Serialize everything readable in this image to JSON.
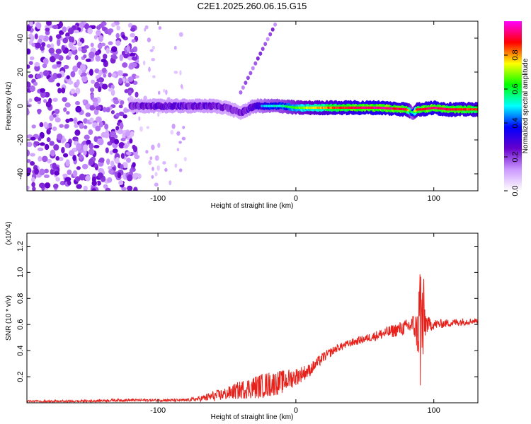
{
  "title": "C2E1.2025.260.06.15.G15",
  "chart_data": [
    {
      "type": "heatmap",
      "xlabel": "Height of straight line (km)",
      "ylabel": "Frequency (Hz)",
      "xlim": [
        -195,
        132
      ],
      "ylim": [
        -50,
        50
      ],
      "x_ticks": [
        -100,
        0,
        100
      ],
      "x_tick_labels": [
        "-100",
        "0",
        "100"
      ],
      "y_ticks": [
        -40,
        -20,
        0,
        20,
        40
      ],
      "y_tick_labels": [
        "-40",
        "-20",
        "0",
        "20",
        "40"
      ],
      "colorbar": {
        "label": "Normalized spectral amplitude",
        "range": [
          0,
          1
        ],
        "ticks": [
          0.0,
          0.2,
          0.4,
          0.6,
          0.8
        ],
        "tick_labels": [
          "0.0",
          "0.2",
          "0.4",
          "0.6",
          "0.8"
        ],
        "colors": [
          "#ffffff",
          "#cc99ff",
          "#6600cc",
          "#0000ff",
          "#00ffff",
          "#00ff00",
          "#ffff00",
          "#ff0000",
          "#ff00ff"
        ]
      },
      "noise_region": {
        "x_from": -195,
        "x_to": -115,
        "density": 0.65
      },
      "sparse_region": {
        "x_from": -115,
        "x_to": -80,
        "density": 0.2
      },
      "line_feature": {
        "x_from": -40,
        "x_to": -15,
        "y_from": 8,
        "y_to": 48
      },
      "signal_band": {
        "x": [
          -120,
          -100,
          -80,
          -60,
          -50,
          -40,
          -30,
          -20,
          -10,
          0,
          20,
          40,
          60,
          80,
          85,
          88,
          92,
          100,
          110,
          132
        ],
        "center": [
          0,
          0,
          0,
          0,
          -1,
          -4,
          0,
          0,
          0,
          -1,
          -1,
          -1,
          -1,
          -2,
          -4,
          -2,
          -2,
          -1,
          -2,
          -2
        ],
        "amplitude": [
          0.3,
          0.35,
          0.35,
          0.35,
          0.3,
          0.3,
          0.4,
          0.5,
          0.55,
          0.65,
          0.8,
          0.9,
          0.95,
          0.9,
          0.5,
          0.85,
          0.9,
          0.95,
          0.9,
          0.85
        ]
      }
    },
    {
      "type": "line",
      "xlabel": "Height of straight line (km)",
      "ylabel": "SNR (10 * v/v)",
      "y_multiplier": "(x10^4)",
      "xlim": [
        -195,
        132
      ],
      "ylim": [
        0,
        1.3
      ],
      "x_ticks": [
        -100,
        0,
        100
      ],
      "x_tick_labels": [
        "-100",
        "0",
        "100"
      ],
      "y_ticks": [
        0.2,
        0.4,
        0.6,
        0.8,
        1.0,
        1.2
      ],
      "y_tick_labels": [
        "0.2",
        "0.4",
        "0.6",
        "0.8",
        "1.0",
        "1.2"
      ],
      "series": [
        {
          "color": "#e8201a",
          "x": [
            -195,
            -160,
            -130,
            -100,
            -80,
            -70,
            -60,
            -50,
            -40,
            -30,
            -20,
            -10,
            0,
            10,
            20,
            30,
            40,
            50,
            60,
            70,
            80,
            85,
            88,
            90,
            92,
            94,
            96,
            100,
            110,
            120,
            132
          ],
          "y": [
            0.01,
            0.01,
            0.02,
            0.02,
            0.02,
            0.03,
            0.05,
            0.07,
            0.1,
            0.12,
            0.14,
            0.16,
            0.2,
            0.25,
            0.35,
            0.42,
            0.46,
            0.49,
            0.52,
            0.55,
            0.58,
            0.6,
            0.55,
            0.62,
            0.6,
            0.62,
            0.6,
            0.6,
            0.61,
            0.62,
            0.63
          ],
          "noise": [
            0.01,
            0.01,
            0.01,
            0.01,
            0.01,
            0.02,
            0.04,
            0.05,
            0.07,
            0.09,
            0.1,
            0.09,
            0.07,
            0.05,
            0.04,
            0.03,
            0.03,
            0.03,
            0.04,
            0.05,
            0.06,
            0.08,
            0.15,
            0.6,
            0.5,
            0.1,
            0.06,
            0.04,
            0.03,
            0.03,
            0.02
          ]
        }
      ]
    }
  ]
}
